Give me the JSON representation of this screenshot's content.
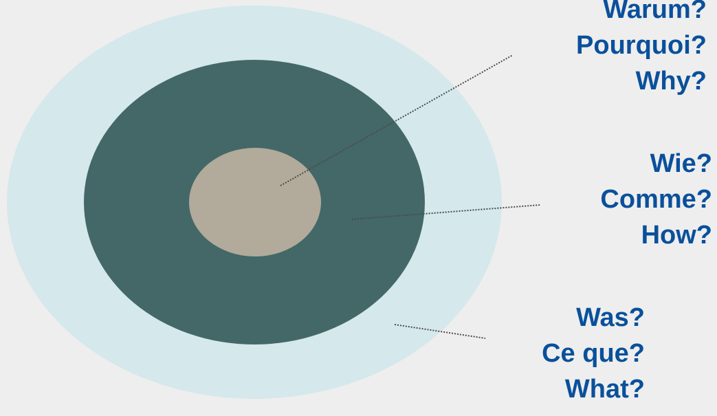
{
  "colors": {
    "background": "#eeeeee",
    "outer_ring": "#d5e8eb",
    "middle_ring": "#436867",
    "core": "#b2aa9b",
    "text": "#0a509b",
    "leader_line": "#4a4a4a"
  },
  "groups": [
    {
      "id": "why",
      "lines": [
        "Warum?",
        "Pourquoi?",
        "Why?"
      ]
    },
    {
      "id": "how",
      "lines": [
        "Wie?",
        "Comme?",
        "How?"
      ]
    },
    {
      "id": "what",
      "lines": [
        "Was?",
        "Ce que?",
        "What?"
      ]
    }
  ]
}
